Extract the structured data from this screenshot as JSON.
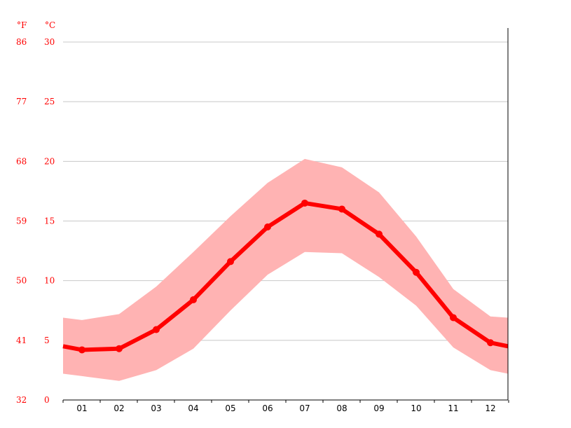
{
  "chart_data": {
    "type": "line",
    "categories": [
      "01",
      "02",
      "03",
      "04",
      "05",
      "06",
      "07",
      "08",
      "09",
      "10",
      "11",
      "12"
    ],
    "series": [
      {
        "values": [
          4.2,
          4.3,
          5.9,
          8.4,
          11.6,
          14.5,
          16.5,
          16.0,
          13.9,
          10.7,
          6.9,
          4.8
        ]
      }
    ],
    "band": {
      "max": [
        6.7,
        7.2,
        9.5,
        12.4,
        15.4,
        18.2,
        20.2,
        19.5,
        17.4,
        13.7,
        9.3,
        7.0
      ],
      "min": [
        2.0,
        1.6,
        2.5,
        4.3,
        7.5,
        10.5,
        12.4,
        12.3,
        10.3,
        7.9,
        4.4,
        2.5
      ]
    },
    "edge": {
      "left": {
        "value": 4.5,
        "max": 6.9,
        "min": 2.2
      },
      "right": {
        "value": 4.5,
        "max": 6.9,
        "min": 2.2
      }
    },
    "y_unit_labels": {
      "fahrenheit": "°F",
      "celsius": "°C"
    },
    "yticks_c": [
      "0",
      "5",
      "10",
      "15",
      "20",
      "25",
      "30"
    ],
    "yticks_f": [
      "32",
      "41",
      "50",
      "59",
      "68",
      "77",
      "86"
    ],
    "ylim": [
      0,
      30
    ],
    "grid": true,
    "colors": {
      "line": "#ff0000",
      "band": "#ffb3b3",
      "grid": "#c8c8c8",
      "axis": "#000000",
      "ticktext": "#ff0000"
    }
  }
}
